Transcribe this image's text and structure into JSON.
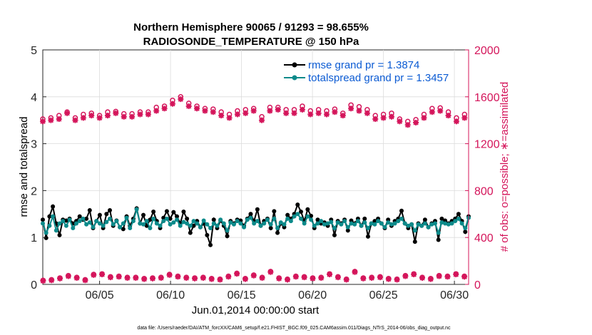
{
  "chart_data": {
    "type": "line",
    "title": "Northern Hemisphere 90065 / 91293 = 98.655%",
    "subtitle": "RADIOSONDE_TEMPERATURE @ 150 hPa",
    "xlabel": "Jun.01,2014 00:00:00 start",
    "ylabel": "rmse and totalspread",
    "ylabel_right": "# of obs: o=possible; ∗=assimilated",
    "footnote": "data file: /Users/raeder/DAI/ATM_forcXX/CAM6_setup/f.e21.FHIST_BGC.f09_025.CAM6assim.011/Diags_NTrS_2014-06/obs_diag_output.nc",
    "xlim": [
      1,
      31
    ],
    "ylim": [
      0,
      5
    ],
    "ylim_right": [
      0,
      2000
    ],
    "x_ticks": [
      5,
      10,
      15,
      20,
      25,
      30
    ],
    "x_tick_labels": [
      "06/05",
      "06/10",
      "06/15",
      "06/20",
      "06/25",
      "06/30"
    ],
    "y_ticks": [
      "0",
      "1",
      "2",
      "3",
      "4",
      "5"
    ],
    "y_right_ticks": [
      "0",
      "400",
      "800",
      "1200",
      "1600",
      "2000"
    ],
    "legend": [
      "rmse grand pr = 1.3874",
      "totalspread grand pr = 1.3457"
    ],
    "colors": {
      "rmse": "#000000",
      "spread": "#0c8a8a",
      "obs": "#d4145a",
      "legend_text": "#0b5bd3"
    },
    "series": [
      {
        "name": "rmse",
        "axis": "left",
        "values": [
          1.38,
          0.99,
          1.45,
          1.66,
          1.3,
          1.05,
          1.38,
          1.36,
          1.4,
          1.3,
          1.35,
          1.45,
          1.38,
          1.4,
          1.58,
          1.2,
          1.35,
          1.48,
          1.2,
          1.5,
          1.58,
          1.25,
          1.36,
          1.22,
          1.18,
          1.45,
          1.25,
          1.4,
          1.62,
          1.3,
          1.48,
          1.25,
          1.38,
          1.55,
          1.35,
          1.2,
          1.42,
          1.56,
          1.4,
          1.54,
          1.45,
          1.3,
          1.55,
          1.4,
          1.1,
          1.25,
          1.35,
          1.22,
          1.3,
          1.05,
          0.84,
          1.38,
          1.2,
          1.36,
          1.25,
          1.03,
          1.35,
          1.3,
          1.38,
          1.36,
          1.25,
          1.4,
          1.5,
          1.35,
          1.6,
          1.25,
          1.35,
          1.4,
          1.2,
          1.56,
          1.1,
          1.3,
          1.22,
          1.48,
          1.4,
          1.5,
          1.7,
          1.55,
          1.35,
          1.6,
          1.46,
          1.2,
          1.38,
          1.3,
          1.32,
          1.25,
          1.38,
          1.05,
          1.35,
          1.3,
          1.38,
          1.15,
          1.36,
          1.3,
          1.4,
          1.25,
          1.4,
          1.02,
          1.3,
          1.35,
          1.4,
          1.3,
          1.2,
          1.38,
          1.25,
          1.35,
          1.4,
          1.57,
          1.3,
          1.2,
          1.28,
          0.91,
          1.3,
          1.25,
          1.38,
          1.22,
          1.3,
          1.35,
          0.95,
          1.4,
          1.36,
          1.3,
          1.35,
          1.4,
          1.5,
          1.35,
          1.12,
          1.45
        ]
      },
      {
        "name": "totalspread",
        "axis": "left",
        "values": [
          1.3,
          1.1,
          1.25,
          1.45,
          1.15,
          1.3,
          1.35,
          1.25,
          1.38,
          1.2,
          1.3,
          1.35,
          1.4,
          1.28,
          1.32,
          1.22,
          1.35,
          1.3,
          1.25,
          1.33,
          1.4,
          1.28,
          1.35,
          1.22,
          1.3,
          1.42,
          1.2,
          1.35,
          1.6,
          1.3,
          1.28,
          1.35,
          1.2,
          1.4,
          1.3,
          1.25,
          1.35,
          1.4,
          1.28,
          1.32,
          1.38,
          1.25,
          1.33,
          1.3,
          1.25,
          1.35,
          1.3,
          1.22,
          1.36,
          1.28,
          1.2,
          1.3,
          1.25,
          1.38,
          1.3,
          1.15,
          1.32,
          1.28,
          1.35,
          1.3,
          1.22,
          1.38,
          1.42,
          1.3,
          1.35,
          1.25,
          1.3,
          1.38,
          1.28,
          1.4,
          1.2,
          1.32,
          1.28,
          1.4,
          1.35,
          1.45,
          1.5,
          1.4,
          1.3,
          1.45,
          1.38,
          1.25,
          1.3,
          1.35,
          1.28,
          1.3,
          1.33,
          1.2,
          1.32,
          1.28,
          1.35,
          1.22,
          1.3,
          1.28,
          1.35,
          1.25,
          1.32,
          1.2,
          1.3,
          1.28,
          1.35,
          1.3,
          1.22,
          1.32,
          1.28,
          1.3,
          1.35,
          1.4,
          1.3,
          1.25,
          1.28,
          1.15,
          1.28,
          1.25,
          1.3,
          1.22,
          1.28,
          1.3,
          1.1,
          1.32,
          1.3,
          1.28,
          1.3,
          1.35,
          1.4,
          1.3,
          1.2,
          1.42
        ]
      },
      {
        "name": "obs possible (00Z)",
        "axis": "right",
        "marker": "o",
        "values": [
          1410,
          1420,
          1440,
          1470,
          1420,
          1450,
          1460,
          1440,
          1470,
          1475,
          1455,
          1455,
          1470,
          1470,
          1510,
          1520,
          1570,
          1600,
          1545,
          1520,
          1500,
          1495,
          1470,
          1450,
          1480,
          1490,
          1500,
          1430,
          1510,
          1510,
          1490,
          1490,
          1520,
          1480,
          1490,
          1480,
          1495,
          1460,
          1530,
          1515,
          1490,
          1440,
          1450,
          1460,
          1410,
          1390,
          1405,
          1450,
          1500,
          1505,
          1470,
          1420,
          1450
        ]
      },
      {
        "name": "obs assimilated (00Z)",
        "axis": "right",
        "marker": "*",
        "values": [
          1390,
          1400,
          1410,
          1460,
          1400,
          1420,
          1440,
          1420,
          1440,
          1460,
          1430,
          1430,
          1450,
          1450,
          1480,
          1500,
          1540,
          1580,
          1520,
          1500,
          1480,
          1470,
          1440,
          1420,
          1450,
          1460,
          1480,
          1400,
          1480,
          1490,
          1460,
          1460,
          1490,
          1450,
          1460,
          1450,
          1470,
          1440,
          1500,
          1480,
          1460,
          1410,
          1420,
          1430,
          1390,
          1360,
          1380,
          1420,
          1470,
          1480,
          1440,
          1390,
          1420
        ]
      },
      {
        "name": "obs possible (12Z)",
        "axis": "right",
        "marker": "o",
        "values": [
          35,
          40,
          55,
          75,
          60,
          40,
          85,
          90,
          65,
          70,
          60,
          60,
          50,
          55,
          60,
          85,
          70,
          60,
          55,
          60,
          50,
          45,
          70,
          95,
          50,
          80,
          60,
          110,
          55,
          45,
          70,
          65,
          55,
          60,
          90,
          65,
          45,
          110,
          55,
          60,
          65,
          50,
          45,
          75,
          90,
          60,
          50,
          75,
          70,
          90,
          70
        ]
      },
      {
        "name": "obs assimilated (12Z)",
        "axis": "right",
        "marker": "*",
        "values": [
          30,
          35,
          50,
          70,
          55,
          35,
          80,
          85,
          60,
          65,
          55,
          55,
          45,
          50,
          55,
          80,
          65,
          55,
          50,
          55,
          45,
          40,
          65,
          90,
          45,
          75,
          55,
          105,
          50,
          40,
          65,
          60,
          50,
          55,
          85,
          60,
          40,
          105,
          50,
          55,
          60,
          45,
          40,
          70,
          85,
          55,
          45,
          70,
          65,
          85,
          65
        ]
      }
    ]
  }
}
